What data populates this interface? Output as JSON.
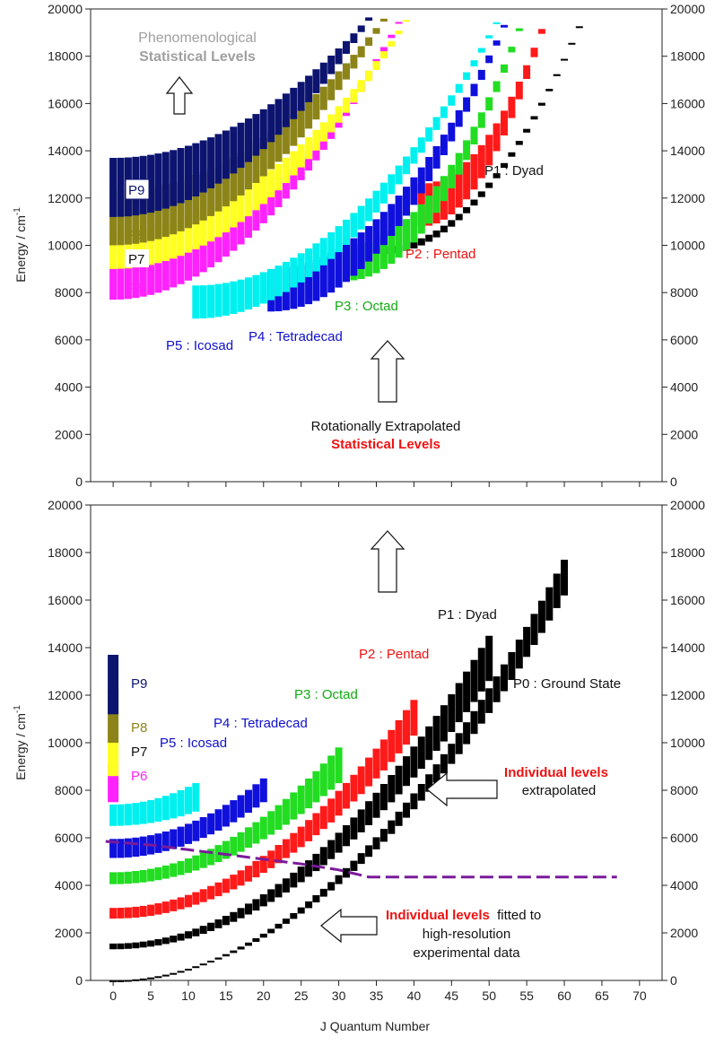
{
  "colors": {
    "P0": "#000000",
    "P1": "#000000",
    "P2": "#ff1a1a",
    "P3": "#22dd22",
    "P4": "#1010dd",
    "P5": "#00f0f0",
    "P6": "#ff22ff",
    "P7": "#ffff22",
    "P8": "#8c8418",
    "P9": "#0c1470",
    "boundary": "#7a1a9a",
    "annotation_red": "#ee1111",
    "annotation_gray": "#a0a0a0"
  },
  "chart_data": [
    {
      "type": "scatter",
      "panel": "top",
      "title": "",
      "xlabel": "J Quantum Number",
      "ylabel": "Energy / cm-1",
      "xlim": [
        -3,
        73
      ],
      "ylim": [
        0,
        20000
      ],
      "yticks": [
        "0",
        "2000",
        "4000",
        "6000",
        "8000",
        "10000",
        "12000",
        "14000",
        "16000",
        "18000",
        "20000"
      ],
      "xticks_minor_only": true,
      "grid": false,
      "series": [
        {
          "name": "P1 : Dyad",
          "color_key": "P1",
          "j_range": [
            36,
            63
          ],
          "e_min": [
            9640,
            20000
          ],
          "e_max": [
            9950,
            20000
          ],
          "levels_per_j": 4
        },
        {
          "name": "P2 : Pentad",
          "color_key": "P2",
          "j_range": [
            41,
            58
          ],
          "e_min": [
            10800,
            20000
          ],
          "e_max": [
            12600,
            20000
          ],
          "levels_per_j": 7
        },
        {
          "name": "P3 : Octad",
          "color_key": "P3",
          "j_range": [
            31,
            55
          ],
          "e_min": [
            8500,
            20000
          ],
          "e_max": [
            10000,
            20000
          ],
          "levels_per_j": 7
        },
        {
          "name": "P4 : Tetradecad",
          "color_key": "P4",
          "j_range": [
            21,
            53
          ],
          "e_min": [
            7200,
            20000
          ],
          "e_max": [
            9000,
            20000
          ],
          "levels_per_j": 7
        },
        {
          "name": "P5 : Icosad",
          "color_key": "P5",
          "j_range": [
            11,
            52
          ],
          "e_min": [
            6900,
            20000
          ],
          "e_max": [
            8300,
            20000
          ],
          "levels_per_j": 7
        },
        {
          "name": "P6",
          "color_key": "P6",
          "j_range": [
            0,
            39
          ],
          "e_min": [
            7700,
            20000
          ],
          "e_max": [
            9100,
            20000
          ],
          "levels_per_j": 8
        },
        {
          "name": "P7",
          "color_key": "P7",
          "j_range": [
            0,
            40
          ],
          "e_min": [
            9000,
            20000
          ],
          "e_max": [
            10600,
            20000
          ],
          "levels_per_j": 8
        },
        {
          "name": "P8",
          "color_key": "P8",
          "j_range": [
            0,
            37
          ],
          "e_min": [
            10000,
            20000
          ],
          "e_max": [
            12300,
            20000
          ],
          "levels_per_j": 8
        },
        {
          "name": "P9",
          "color_key": "P9",
          "j_range": [
            0,
            35
          ],
          "e_min": [
            11200,
            20000
          ],
          "e_max": [
            13700,
            20000
          ],
          "levels_per_j": 8
        }
      ],
      "labels": {
        "P1": "P1 : Dyad",
        "P2": "P2 : Pentad",
        "P3": "P3 : Octad",
        "P4": "P4 : Tetradecad",
        "P5": "P5 : Icosad",
        "P6": "P6",
        "P7": "P7",
        "P8": "P8",
        "P9": "P9"
      },
      "annotations": {
        "phenom_line1": "Phenomenological",
        "phenom_line2": "Statistical Levels",
        "rot_line1": "Rotationally Extrapolated",
        "rot_line2": "Statistical Levels"
      }
    },
    {
      "type": "scatter",
      "panel": "bottom",
      "title": "",
      "xlabel": "J Quantum Number",
      "ylabel": "Energy / cm-1",
      "xlim": [
        -3,
        73
      ],
      "ylim": [
        0,
        20000
      ],
      "xticks": [
        "0",
        "5",
        "10",
        "15",
        "20",
        "25",
        "30",
        "35",
        "40",
        "45",
        "50",
        "55",
        "60",
        "65",
        "70"
      ],
      "yticks": [
        "0",
        "2000",
        "4000",
        "6000",
        "8000",
        "10000",
        "12000",
        "14000",
        "16000",
        "18000",
        "20000"
      ],
      "grid": false,
      "series": [
        {
          "name": "P0 : Ground State",
          "color_key": "P0",
          "j_range": [
            0,
            60
          ],
          "e_min": [
            0,
            16200
          ],
          "e_max": [
            0,
            17700
          ],
          "levels_per_j": 4
        },
        {
          "name": "P1 : Dyad",
          "color_key": "P1",
          "j_range": [
            0,
            50
          ],
          "e_min": [
            1310,
            12600
          ],
          "e_max": [
            1550,
            14500
          ],
          "levels_per_j": 5
        },
        {
          "name": "P2 : Pentad",
          "color_key": "P2",
          "j_range": [
            0,
            40
          ],
          "e_min": [
            2600,
            10300
          ],
          "e_max": [
            3050,
            11800
          ],
          "levels_per_j": 6
        },
        {
          "name": "P3 : Octad",
          "color_key": "P3",
          "j_range": [
            0,
            30
          ],
          "e_min": [
            4050,
            8300
          ],
          "e_max": [
            4550,
            9800
          ],
          "levels_per_j": 7
        },
        {
          "name": "P4 : Tetradecad",
          "color_key": "P4",
          "j_range": [
            0,
            20
          ],
          "e_min": [
            5150,
            7500
          ],
          "e_max": [
            5950,
            8500
          ],
          "levels_per_j": 7
        },
        {
          "name": "P5 : Icosad",
          "color_key": "P5",
          "j_range": [
            0,
            11
          ],
          "e_min": [
            6500,
            7100
          ],
          "e_max": [
            7400,
            8300
          ],
          "levels_per_j": 7
        },
        {
          "name": "P6",
          "color_key": "P6",
          "j_range": [
            0,
            0
          ],
          "e_min": [
            7500,
            7500
          ],
          "e_max": [
            9100,
            9100
          ],
          "levels_per_j": 1
        },
        {
          "name": "P7",
          "color_key": "P7",
          "j_range": [
            0,
            0
          ],
          "e_min": [
            8600,
            8600
          ],
          "e_max": [
            10500,
            10500
          ],
          "levels_per_j": 1
        },
        {
          "name": "P8",
          "color_key": "P8",
          "j_range": [
            0,
            0
          ],
          "e_min": [
            10000,
            10000
          ],
          "e_max": [
            12200,
            12200
          ],
          "levels_per_j": 1
        },
        {
          "name": "P9",
          "color_key": "P9",
          "j_range": [
            0,
            0
          ],
          "e_min": [
            11200,
            11200
          ],
          "e_max": [
            13700,
            13700
          ],
          "levels_per_j": 1
        }
      ],
      "boundary_line": {
        "style": "dashed",
        "x": [
          -1,
          5,
          10,
          15,
          20,
          25,
          30,
          34,
          40,
          50,
          60,
          67
        ],
        "y": [
          5850,
          5700,
          5500,
          5300,
          5100,
          4900,
          4650,
          4350,
          4350,
          4350,
          4350,
          4350
        ]
      },
      "labels": {
        "P0": "P0 : Ground State",
        "P1": "P1 : Dyad",
        "P2": "P2 : Pentad",
        "P3": "P3 : Octad",
        "P4": "P4 : Tetradecad",
        "P5": "P5 : Icosad",
        "P6": "P6",
        "P7": "P7",
        "P8": "P8",
        "P9": "P9"
      },
      "annotations": {
        "indiv_extrap_line1": "Individual levels",
        "indiv_extrap_line2": "extrapolated",
        "indiv_fit_red": "Individual levels",
        "indiv_fit_rest": "fitted to",
        "indiv_fit_line2": "high-resolution",
        "indiv_fit_line3": "experimental data"
      }
    }
  ]
}
